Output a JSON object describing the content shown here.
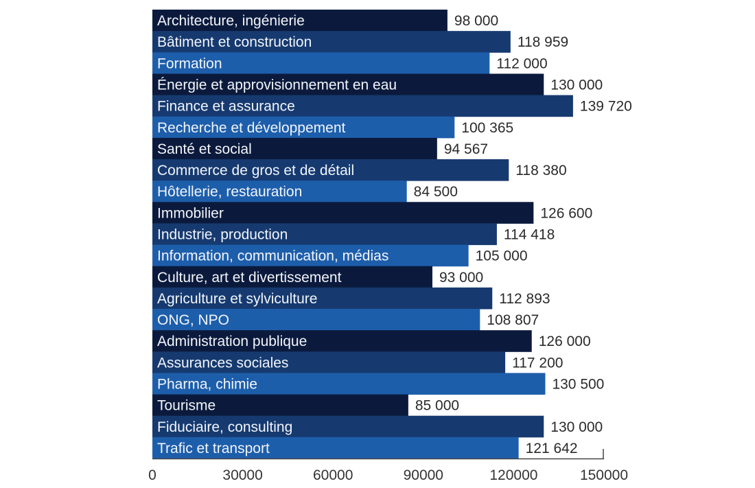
{
  "chart_data": {
    "type": "bar",
    "orientation": "horizontal",
    "title": "",
    "xlabel": "",
    "ylabel": "",
    "xlim": [
      0,
      150000
    ],
    "grid": false,
    "legend": "none",
    "x_ticks": [
      "0",
      "30000",
      "60000",
      "90000",
      "120000",
      "150000"
    ],
    "x_tick_values": [
      0,
      30000,
      60000,
      90000,
      120000,
      150000
    ],
    "categories": [
      "Architecture, ingénierie",
      "Bâtiment et construction",
      "Formation",
      "Énergie et approvisionnement en eau",
      "Finance et assurance",
      "Recherche et développement",
      "Santé et social",
      "Commerce de gros et de détail",
      "Hôtellerie, restauration",
      "Immobilier",
      "Industrie, production",
      "Information, communication, médias",
      "Culture, art et divertissement",
      "Agriculture et sylviculture",
      "ONG, NPO",
      "Administration publique",
      "Assurances sociales",
      "Pharma, chimie",
      "Tourisme",
      "Fiduciaire, consulting",
      "Trafic et transport"
    ],
    "values": [
      98000,
      118959,
      112000,
      130000,
      139720,
      100365,
      94567,
      118380,
      84500,
      126600,
      114418,
      105000,
      93000,
      112893,
      108807,
      126000,
      117200,
      130500,
      85000,
      130000,
      121642
    ],
    "value_labels": [
      "98 000",
      "118 959",
      "112 000",
      "130 000",
      "139 720",
      "100 365",
      "94 567",
      "118 380",
      "84 500",
      "126 600",
      "114 418",
      "105 000",
      "93 000",
      "112 893",
      "108 807",
      "126 000",
      "117 200",
      "130 500",
      "85 000",
      "130 000",
      "121 642"
    ],
    "colors": [
      "#0b1a3c",
      "#163a70",
      "#1d5eab"
    ]
  }
}
